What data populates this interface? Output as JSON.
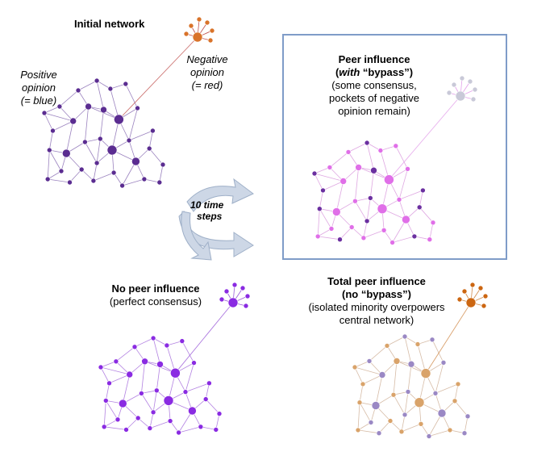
{
  "labels": {
    "initial_title": "Initial network",
    "positive_line1": "Positive",
    "positive_line2": "opinion",
    "positive_line3": "(= blue)",
    "negative_line1": "Negative",
    "negative_line2": "opinion",
    "negative_line3": "(= red)",
    "bypass_title_1": "Peer influence",
    "bypass_title_2a": "(",
    "bypass_title_2b": "with",
    "bypass_title_2c": " “bypass”)",
    "bypass_desc_1": "(some consensus,",
    "bypass_desc_2": "pockets of negative",
    "bypass_desc_3": "opinion remain)",
    "arrow_line1": "10 time",
    "arrow_line2": "steps",
    "no_peer_title": "No peer influence",
    "no_peer_desc": "(perfect consensus)",
    "total_title_1": "Total peer influence",
    "total_title_2": "(no “bypass”)",
    "total_desc_1": "(isolated minority overpowers",
    "total_desc_2": "central network)"
  },
  "colors": {
    "initial_blue": "#5b2d91",
    "initial_red": "#d9732a",
    "bypass_pink": "#e06fe8",
    "bypass_purple": "#6b2fa0",
    "bypass_grey": "#c9c9d8",
    "consensus_purple": "#8a2be2",
    "total_tan": "#d9a36a",
    "total_lavender": "#9a88c4",
    "total_orange": "#cc6611",
    "arrow_fill": "#cdd7e6",
    "box_border": "#7f9cc8"
  }
}
